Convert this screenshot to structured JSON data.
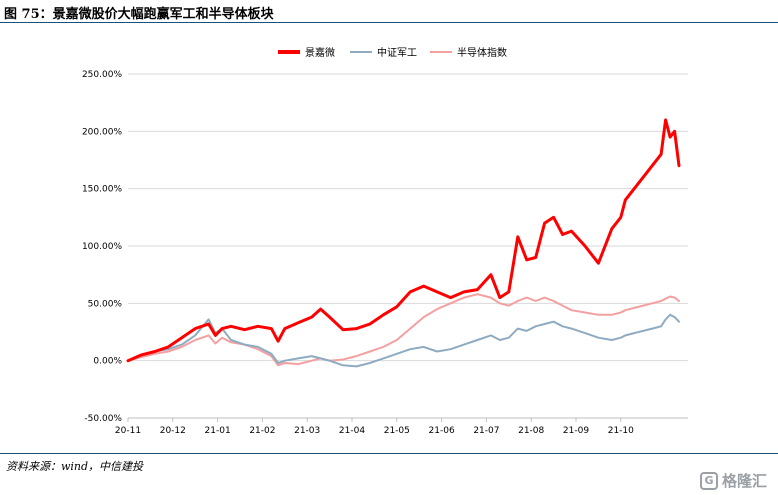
{
  "header": {
    "title": "图 75：景嘉微股价大幅跑赢军工和半导体板块"
  },
  "footer": {
    "source": "资料来源：wind，中信建投"
  },
  "watermark": {
    "label": "格隆汇",
    "icon": "g-logo-icon"
  },
  "chart_data": {
    "type": "line",
    "title": "",
    "xlabel": "",
    "ylabel": "",
    "ylim": [
      -50,
      250
    ],
    "yticks": [
      "250.00%",
      "200.00%",
      "150.00%",
      "100.00%",
      "50.00%",
      "0.00%",
      "-50.00%"
    ],
    "ytick_values": [
      250,
      200,
      150,
      100,
      50,
      0,
      -50
    ],
    "xlim": [
      0,
      12.5
    ],
    "xticks": [
      "20-11",
      "20-12",
      "21-01",
      "21-02",
      "21-03",
      "21-04",
      "21-05",
      "21-06",
      "21-07",
      "21-08",
      "21-09",
      "21-10"
    ],
    "xtick_values": [
      0,
      1,
      2,
      3,
      4,
      5,
      6,
      7,
      8,
      9,
      10,
      11
    ],
    "grid": "horizontal",
    "legend": "top-center",
    "series": [
      {
        "name": "景嘉微",
        "color": "#ff0000",
        "x": [
          0,
          0.3,
          0.6,
          0.9,
          1.2,
          1.5,
          1.8,
          1.95,
          2.1,
          2.3,
          2.6,
          2.9,
          3.2,
          3.35,
          3.5,
          3.8,
          4.1,
          4.3,
          4.5,
          4.8,
          5.1,
          5.4,
          5.7,
          6.0,
          6.3,
          6.6,
          6.9,
          7.2,
          7.5,
          7.8,
          8.1,
          8.3,
          8.5,
          8.7,
          8.9,
          9.1,
          9.3,
          9.5,
          9.7,
          9.9,
          10.2,
          10.5,
          10.8,
          11.0,
          11.1,
          11.3,
          11.5,
          11.7,
          11.9,
          12.0,
          12.1,
          12.2,
          12.3
        ],
        "values": [
          0,
          5,
          8,
          12,
          20,
          28,
          32,
          22,
          28,
          30,
          27,
          30,
          28,
          17,
          28,
          33,
          38,
          45,
          38,
          27,
          28,
          32,
          40,
          47,
          60,
          65,
          60,
          55,
          60,
          62,
          75,
          55,
          60,
          108,
          88,
          90,
          120,
          125,
          110,
          113,
          100,
          85,
          115,
          125,
          140,
          150,
          160,
          170,
          180,
          210,
          195,
          200,
          170
        ]
      },
      {
        "name": "中证军工",
        "color": "#8eabc1",
        "x": [
          0,
          0.3,
          0.6,
          0.9,
          1.2,
          1.5,
          1.8,
          1.95,
          2.1,
          2.3,
          2.6,
          2.9,
          3.2,
          3.35,
          3.5,
          3.8,
          4.1,
          4.3,
          4.5,
          4.8,
          5.1,
          5.4,
          5.7,
          6.0,
          6.3,
          6.6,
          6.9,
          7.2,
          7.5,
          7.8,
          8.1,
          8.3,
          8.5,
          8.7,
          8.9,
          9.1,
          9.3,
          9.5,
          9.7,
          9.9,
          10.2,
          10.5,
          10.8,
          11.0,
          11.1,
          11.3,
          11.5,
          11.7,
          11.9,
          12.0,
          12.1,
          12.2,
          12.3
        ],
        "values": [
          0,
          5,
          8,
          10,
          14,
          22,
          36,
          24,
          28,
          18,
          14,
          12,
          6,
          -2,
          0,
          2,
          4,
          2,
          0,
          -4,
          -5,
          -2,
          2,
          6,
          10,
          12,
          8,
          10,
          14,
          18,
          22,
          18,
          20,
          28,
          26,
          30,
          32,
          34,
          30,
          28,
          24,
          20,
          18,
          20,
          22,
          24,
          26,
          28,
          30,
          36,
          40,
          38,
          34
        ]
      },
      {
        "name": "半导体指数",
        "color": "#f4a0a0",
        "x": [
          0,
          0.3,
          0.6,
          0.9,
          1.2,
          1.5,
          1.8,
          1.95,
          2.1,
          2.3,
          2.6,
          2.9,
          3.2,
          3.35,
          3.5,
          3.8,
          4.1,
          4.3,
          4.5,
          4.8,
          5.1,
          5.4,
          5.7,
          6.0,
          6.3,
          6.6,
          6.9,
          7.2,
          7.5,
          7.8,
          8.1,
          8.3,
          8.5,
          8.7,
          8.9,
          9.1,
          9.3,
          9.5,
          9.7,
          9.9,
          10.2,
          10.5,
          10.8,
          11.0,
          11.1,
          11.3,
          11.5,
          11.7,
          11.9,
          12.0,
          12.1,
          12.2,
          12.3
        ],
        "values": [
          0,
          3,
          6,
          8,
          12,
          18,
          22,
          15,
          20,
          16,
          14,
          10,
          4,
          -4,
          -2,
          -3,
          0,
          2,
          0,
          1,
          4,
          8,
          12,
          18,
          28,
          38,
          45,
          50,
          55,
          58,
          55,
          50,
          48,
          52,
          55,
          52,
          55,
          52,
          48,
          44,
          42,
          40,
          40,
          42,
          44,
          46,
          48,
          50,
          52,
          54,
          56,
          55,
          52
        ]
      }
    ]
  }
}
